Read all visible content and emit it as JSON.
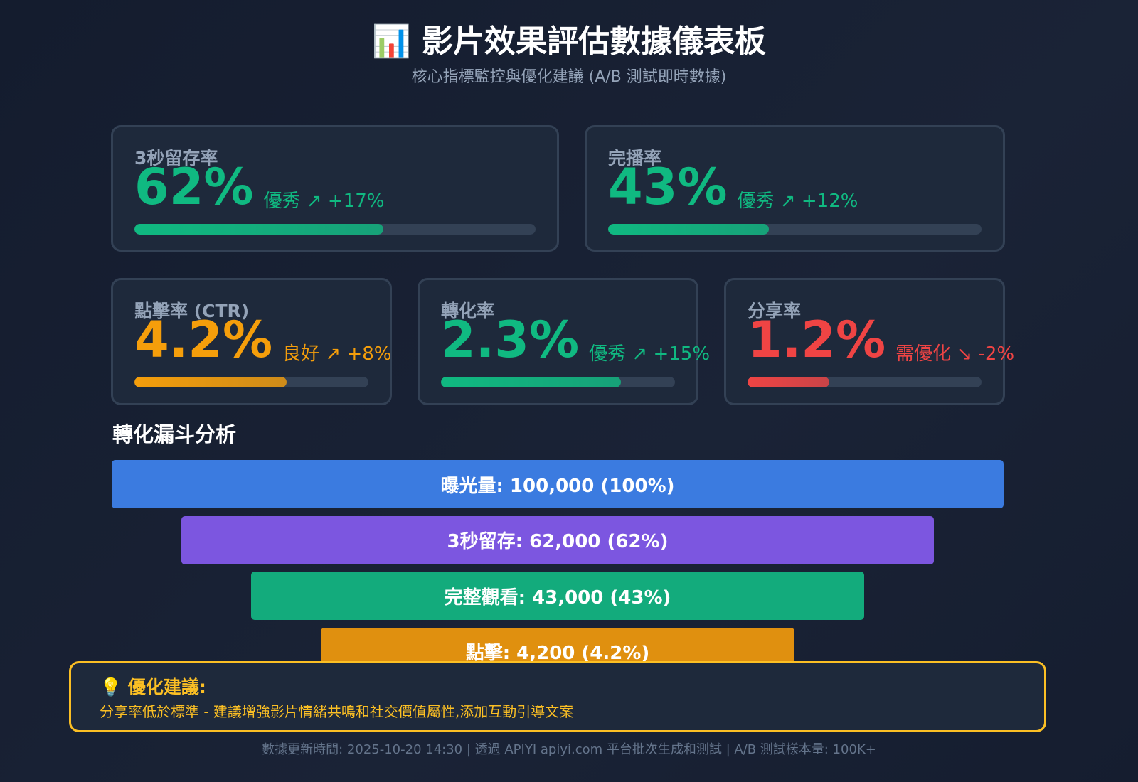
{
  "header": {
    "title": "📊 影片效果評估數據儀表板",
    "subtitle": "核心指標監控與優化建議 (A/B 測試即時數據)"
  },
  "metrics": [
    {
      "label": "3秒留存率",
      "value": "62%",
      "status": "優秀 ↗ +17%",
      "bar": 62,
      "color": "#10b981"
    },
    {
      "label": "完播率",
      "value": "43%",
      "status": "優秀 ↗ +12%",
      "bar": 43,
      "color": "#10b981"
    },
    {
      "label": "點擊率 (CTR)",
      "value": "4.2%",
      "status": "良好 ↗ +8%",
      "bar": 65,
      "color": "#f59e0b"
    },
    {
      "label": "轉化率",
      "value": "2.3%",
      "status": "優秀 ↗ +15%",
      "bar": 77,
      "color": "#10b981"
    },
    {
      "label": "分享率",
      "value": "1.2%",
      "status": "需優化 ↘ -2%",
      "bar": 35,
      "color": "#ef4444"
    }
  ],
  "funnel": {
    "title": "轉化漏斗分析",
    "steps": [
      {
        "label": "曝光量: 100,000 (100%)",
        "color": "#3b7be0"
      },
      {
        "label": "3秒留存: 62,000 (62%)",
        "color": "#7c56e0"
      },
      {
        "label": "完整觀看: 43,000 (43%)",
        "color": "#13ab7c"
      },
      {
        "label": "點擊: 4,200 (4.2%)",
        "color": "#e0900f"
      }
    ]
  },
  "suggestion": {
    "title": "💡 優化建議:",
    "text": "分享率低於標準 - 建議增強影片情緒共鳴和社交價值屬性,添加互動引導文案"
  },
  "footer": "數據更新時間: 2025-10-20 14:30 | 透過 APIYI apiyi.com 平台批次生成和測試 | A/B 測試樣本量: 100K+"
}
